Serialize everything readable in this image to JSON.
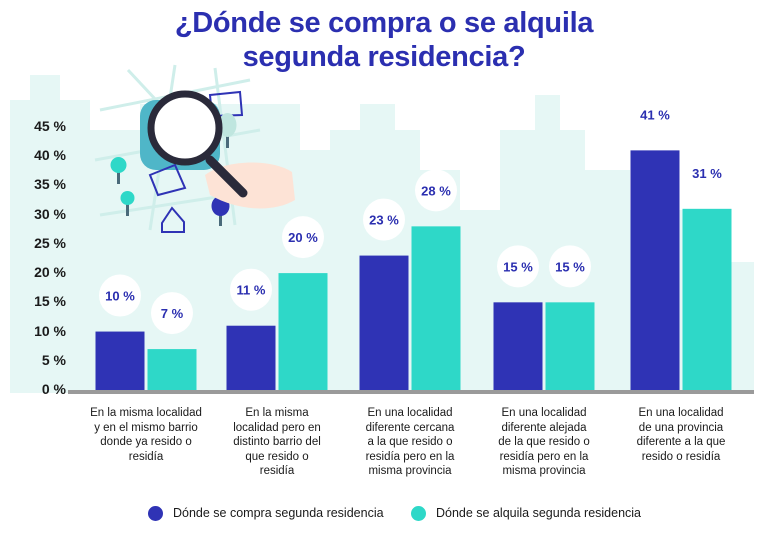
{
  "title_line1": "¿Dónde se compra o se alquila",
  "title_line2": "segunda residencia?",
  "chart_data": {
    "type": "bar",
    "categories": [
      "En la misma localidad y en el mismo barrio donde ya resido o residía",
      "En la misma localidad pero en distinto barrio del que resido o residía",
      "En una localidad diferente cercana a la que resido o residía pero en la misma provincia",
      "En una localidad diferente alejada de la que resido o residía pero en la misma provincia",
      "En una localidad de una provincia diferente a la que resido o residía"
    ],
    "category_lines": [
      [
        "En la misma localidad",
        "y en el mismo barrio",
        "donde ya resido o",
        "residía"
      ],
      [
        "En la misma",
        "localidad pero en",
        "distinto barrio del",
        "que resido o",
        "residía"
      ],
      [
        "En una localidad",
        "diferente cercana",
        "a la que resido o",
        "residía pero en la",
        "misma provincia"
      ],
      [
        "En una localidad",
        "diferente alejada",
        "de la que resido o",
        "residía pero en la",
        "misma provincia"
      ],
      [
        "En una localidad",
        "de una provincia",
        "diferente a la que",
        "resido o residía"
      ]
    ],
    "series": [
      {
        "name": "Dónde se compra segunda residencia",
        "color": "#2f33b5",
        "values": [
          10,
          11,
          23,
          15,
          41
        ],
        "labels": [
          "10 %",
          "11 %",
          "23 %",
          "15 %",
          "41 %"
        ]
      },
      {
        "name": "Dónde se alquila segunda residencia",
        "color": "#2ed8c8",
        "values": [
          7,
          20,
          28,
          15,
          31
        ],
        "labels": [
          "7 %",
          "20 %",
          "28 %",
          "15 %",
          "31 %"
        ]
      }
    ],
    "y_ticks": [
      "45 %",
      "40 %",
      "35 %",
      "30 %",
      "25 %",
      "20 %",
      "15 %",
      "10 %",
      "5 %",
      "0 %"
    ],
    "ylim": [
      0,
      45
    ],
    "legend_position": "bottom"
  },
  "colors": {
    "title": "#2b2fb0",
    "skyline": "#e6f7f5",
    "label_text": "#2b2fb0"
  }
}
